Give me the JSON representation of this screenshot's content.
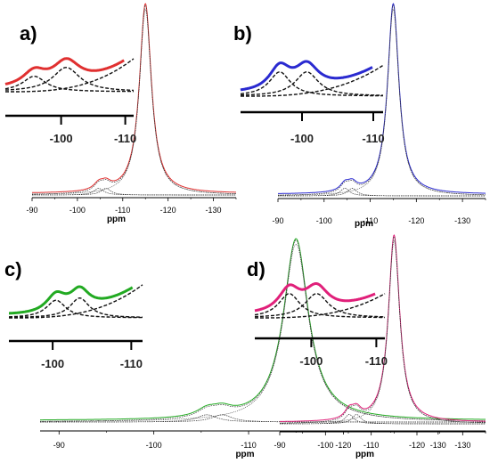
{
  "chart_data": [
    {
      "type": "line",
      "panel": "a)",
      "xlabel": "ppm",
      "xlim": [
        -90,
        -135
      ],
      "x_ticks": [
        "-90",
        "-100",
        "-110",
        "-120",
        "-130"
      ],
      "color": "#e03030",
      "series": [
        {
          "role": "main-peak",
          "center": -115,
          "amplitude": 1.0,
          "width": 1.6
        },
        {
          "role": "minor-peak-1",
          "center": -104.7,
          "amplitude": 0.035,
          "width": 1.3
        },
        {
          "role": "minor-peak-2",
          "center": -106.3,
          "amplitude": 0.035,
          "width": 1.3
        }
      ],
      "inset": {
        "x_ticks": [
          "-100",
          "-110"
        ],
        "xlim": [
          -92,
          -112
        ],
        "components": [
          {
            "center": -96.5,
            "amplitude": 0.35,
            "width": 2.2
          },
          {
            "center": -101.5,
            "amplitude": 0.55,
            "width": 2.6
          },
          {
            "role": "tail",
            "amplitude": 0.75
          }
        ]
      }
    },
    {
      "type": "line",
      "panel": "b)",
      "xlabel": "ppm",
      "xlim": [
        -90,
        -135
      ],
      "x_ticks": [
        "-90",
        "-100",
        "-110",
        "-120",
        "-130"
      ],
      "color": "#2a2ad0",
      "series": [
        {
          "role": "main-peak",
          "center": -115,
          "amplitude": 1.0,
          "width": 1.5
        },
        {
          "role": "minor-peak-1",
          "center": -104.5,
          "amplitude": 0.04,
          "width": 1.2
        },
        {
          "role": "minor-peak-2",
          "center": -106.1,
          "amplitude": 0.04,
          "width": 1.2
        }
      ],
      "inset": {
        "x_ticks": [
          "-100",
          "-110"
        ],
        "xlim": [
          -92,
          -112
        ],
        "components": [
          {
            "center": -97.5,
            "amplitude": 0.55,
            "width": 1.8
          },
          {
            "center": -101.3,
            "amplitude": 0.55,
            "width": 2.0
          },
          {
            "role": "tail",
            "amplitude": 0.7
          }
        ]
      }
    },
    {
      "type": "line",
      "panel": "c)",
      "xlabel": "ppm",
      "xlim": [
        -88,
        -135
      ],
      "x_ticks": [
        "-90",
        "-100",
        "-110",
        "-120",
        "-130"
      ],
      "color": "#22aa22",
      "series": [
        {
          "role": "main-peak",
          "center": -115,
          "amplitude": 1.0,
          "width": 1.6
        },
        {
          "role": "minor-peak-1",
          "center": -105.6,
          "amplitude": 0.04,
          "width": 1.3
        },
        {
          "role": "minor-peak-2",
          "center": -107.2,
          "amplitude": 0.04,
          "width": 1.3
        }
      ],
      "inset": {
        "x_ticks": [
          "-100",
          "-110"
        ],
        "xlim": [
          -95,
          -112
        ],
        "components": [
          {
            "center": -101.0,
            "amplitude": 0.4,
            "width": 1.5
          },
          {
            "center": -104.0,
            "amplitude": 0.45,
            "width": 1.5
          },
          {
            "role": "tail",
            "amplitude": 0.75
          }
        ]
      }
    },
    {
      "type": "line",
      "panel": "d)",
      "xlabel": "ppm",
      "xlim": [
        -90,
        -135
      ],
      "x_ticks": [
        "-90",
        "-100",
        "-110",
        "-120",
        "-130"
      ],
      "color": "#e0207a",
      "series": [
        {
          "role": "main-peak",
          "center": -115,
          "amplitude": 1.0,
          "width": 1.5
        },
        {
          "role": "minor-peak-1",
          "center": -105.2,
          "amplitude": 0.05,
          "width": 1.2
        },
        {
          "role": "minor-peak-2",
          "center": -106.8,
          "amplitude": 0.05,
          "width": 1.2
        }
      ],
      "inset": {
        "x_ticks": [
          "-100",
          "-110"
        ],
        "xlim": [
          -92,
          -112
        ],
        "components": [
          {
            "center": -97.3,
            "amplitude": 0.55,
            "width": 2.0
          },
          {
            "center": -101.5,
            "amplitude": 0.55,
            "width": 2.2
          },
          {
            "role": "tail",
            "amplitude": 0.55
          }
        ]
      }
    }
  ]
}
